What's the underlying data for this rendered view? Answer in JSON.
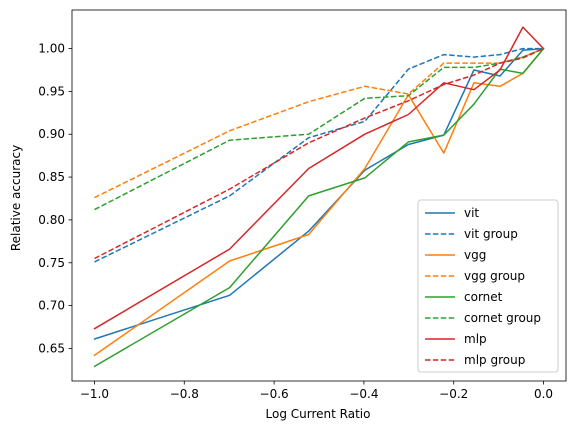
{
  "chart_data": {
    "type": "line",
    "xlabel": "Log Current Ratio",
    "ylabel": "Relative accuracy",
    "xlim": [
      -1.05,
      0.05
    ],
    "ylim": [
      0.612,
      1.045
    ],
    "xticks": [
      -1.0,
      -0.8,
      -0.6,
      -0.4,
      -0.2,
      0.0
    ],
    "xtick_labels": [
      "−1.0",
      "−0.8",
      "−0.6",
      "−0.4",
      "−0.2",
      "0.0"
    ],
    "yticks": [
      0.65,
      0.7,
      0.75,
      0.8,
      0.85,
      0.9,
      0.95,
      1.0
    ],
    "ytick_labels": [
      "0.65",
      "0.70",
      "0.75",
      "0.80",
      "0.85",
      "0.90",
      "0.95",
      "1.00"
    ],
    "grid": false,
    "legend_position": "lower-right",
    "x": [
      -1.0,
      -0.699,
      -0.523,
      -0.398,
      -0.301,
      -0.222,
      -0.155,
      -0.097,
      -0.046,
      0.0
    ],
    "series": [
      {
        "name": "vit",
        "color": "#1f77b4",
        "style": "solid",
        "values": [
          0.661,
          0.712,
          0.787,
          0.858,
          0.888,
          0.899,
          0.975,
          0.968,
          0.998,
          1.0
        ]
      },
      {
        "name": "vit group",
        "color": "#1f77b4",
        "style": "dashed",
        "values": [
          0.751,
          0.828,
          0.896,
          0.915,
          0.976,
          0.993,
          0.99,
          0.993,
          1.0,
          1.0
        ]
      },
      {
        "name": "vgg",
        "color": "#ff7f0e",
        "style": "solid",
        "values": [
          0.642,
          0.752,
          0.783,
          0.86,
          0.946,
          0.878,
          0.96,
          0.956,
          0.971,
          1.0
        ]
      },
      {
        "name": "vgg group",
        "color": "#ff7f0e",
        "style": "dashed",
        "values": [
          0.826,
          0.904,
          0.938,
          0.956,
          0.947,
          0.983,
          0.983,
          0.983,
          0.99,
          1.0
        ]
      },
      {
        "name": "cornet",
        "color": "#2ca02c",
        "style": "solid",
        "values": [
          0.629,
          0.721,
          0.828,
          0.849,
          0.891,
          0.899,
          0.935,
          0.976,
          0.971,
          1.0
        ]
      },
      {
        "name": "cornet group",
        "color": "#2ca02c",
        "style": "dashed",
        "values": [
          0.812,
          0.893,
          0.9,
          0.942,
          0.945,
          0.978,
          0.978,
          0.983,
          0.99,
          1.0
        ]
      },
      {
        "name": "mlp",
        "color": "#d62728",
        "style": "solid",
        "values": [
          0.673,
          0.766,
          0.86,
          0.9,
          0.923,
          0.96,
          0.952,
          0.975,
          1.025,
          1.0
        ]
      },
      {
        "name": "mlp group",
        "color": "#d62728",
        "style": "dashed",
        "values": [
          0.755,
          0.836,
          0.89,
          0.919,
          0.939,
          0.958,
          0.969,
          0.983,
          0.989,
          1.0
        ]
      }
    ]
  }
}
